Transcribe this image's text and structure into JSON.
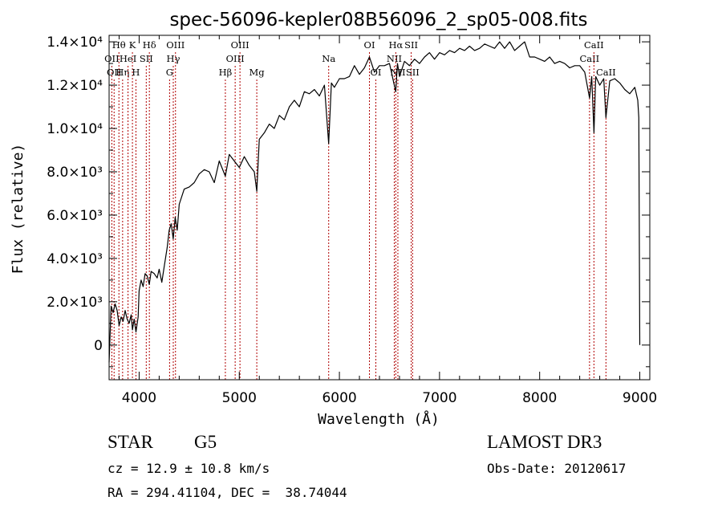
{
  "chart_data": {
    "type": "line",
    "title": "spec-56096-kepler08B56096_2_sp05-008.fits",
    "xlabel": "Wavelength (Å)",
    "ylabel": "Flux (relative)",
    "xlim": [
      3700,
      9100
    ],
    "ylim": [
      -1600,
      14300
    ],
    "xticks": [
      {
        "value": 4000,
        "label": "4000"
      },
      {
        "value": 5000,
        "label": "5000"
      },
      {
        "value": 6000,
        "label": "6000"
      },
      {
        "value": 7000,
        "label": "7000"
      },
      {
        "value": 8000,
        "label": "8000"
      },
      {
        "value": 9000,
        "label": "9000"
      }
    ],
    "yticks": [
      {
        "value": 0,
        "label": "0"
      },
      {
        "value": 2000,
        "label": "2.0×10³"
      },
      {
        "value": 4000,
        "label": "4.0×10³"
      },
      {
        "value": 6000,
        "label": "6.0×10³"
      },
      {
        "value": 8000,
        "label": "8.0×10³"
      },
      {
        "value": 10000,
        "label": "1.0×10⁴"
      },
      {
        "value": 12000,
        "label": "1.2×10⁴"
      },
      {
        "value": 14000,
        "label": "1.4×10⁴"
      }
    ],
    "series": [
      {
        "name": "spectrum",
        "x": [
          3700,
          3720,
          3740,
          3760,
          3780,
          3800,
          3820,
          3840,
          3860,
          3880,
          3900,
          3920,
          3933,
          3950,
          3968,
          3990,
          4000,
          4020,
          4040,
          4060,
          4080,
          4101,
          4120,
          4150,
          4180,
          4200,
          4226,
          4250,
          4280,
          4300,
          4320,
          4340,
          4360,
          4380,
          4400,
          4450,
          4500,
          4550,
          4600,
          4650,
          4700,
          4750,
          4800,
          4861,
          4900,
          4950,
          5000,
          5050,
          5100,
          5150,
          5175,
          5200,
          5250,
          5300,
          5350,
          5400,
          5450,
          5500,
          5550,
          5600,
          5650,
          5700,
          5750,
          5800,
          5850,
          5893,
          5920,
          5950,
          6000,
          6050,
          6100,
          6150,
          6200,
          6250,
          6300,
          6350,
          6400,
          6450,
          6500,
          6563,
          6580,
          6600,
          6650,
          6700,
          6750,
          6800,
          6850,
          6900,
          6950,
          7000,
          7050,
          7100,
          7150,
          7200,
          7250,
          7300,
          7350,
          7400,
          7450,
          7500,
          7550,
          7600,
          7650,
          7700,
          7750,
          7800,
          7850,
          7900,
          7950,
          8000,
          8050,
          8100,
          8150,
          8200,
          8250,
          8300,
          8350,
          8400,
          8450,
          8498,
          8520,
          8542,
          8560,
          8600,
          8640,
          8662,
          8700,
          8750,
          8800,
          8850,
          8900,
          8950,
          8980,
          8990,
          9000
        ],
        "y": [
          -800,
          1800,
          1500,
          1900,
          1600,
          900,
          1300,
          1100,
          1600,
          1200,
          1000,
          1400,
          700,
          1200,
          600,
          1300,
          2500,
          3000,
          2700,
          3300,
          3200,
          2800,
          3400,
          3300,
          3100,
          3500,
          2900,
          3600,
          4500,
          5300,
          5600,
          4900,
          5900,
          5300,
          6500,
          7200,
          7300,
          7500,
          7900,
          8100,
          8000,
          7500,
          8500,
          7800,
          8800,
          8500,
          8200,
          8700,
          8300,
          8000,
          7100,
          9500,
          9800,
          10200,
          10000,
          10600,
          10400,
          11000,
          11300,
          11000,
          11700,
          11600,
          11800,
          11500,
          12000,
          9300,
          12100,
          11900,
          12300,
          12300,
          12400,
          12900,
          12500,
          12800,
          13300,
          12600,
          12900,
          12900,
          13000,
          11700,
          13000,
          12400,
          13100,
          12900,
          13200,
          13000,
          13300,
          13500,
          13200,
          13500,
          13400,
          13600,
          13500,
          13700,
          13600,
          13800,
          13600,
          13700,
          13900,
          13800,
          13700,
          14000,
          13700,
          14000,
          13600,
          13800,
          14000,
          13300,
          13300,
          13200,
          13100,
          13300,
          13000,
          13100,
          13000,
          12800,
          12900,
          12900,
          12600,
          11400,
          12400,
          9800,
          12400,
          12000,
          12300,
          10500,
          12200,
          12300,
          12100,
          11800,
          11600,
          11900,
          11300,
          10500,
          0
        ]
      }
    ],
    "line_markers": [
      {
        "wl": 3727,
        "name": "OII",
        "row": 2
      },
      {
        "wl": 3750,
        "name": "OII",
        "row": 3
      },
      {
        "wl": 3798,
        "name": "Hθ",
        "row": 1
      },
      {
        "wl": 3835,
        "name": "Hη",
        "row": 3
      },
      {
        "wl": 3889,
        "name": "HeI",
        "row": 2
      },
      {
        "wl": 3933,
        "name": "K",
        "row": 1
      },
      {
        "wl": 3968,
        "name": "H",
        "row": 3
      },
      {
        "wl": 4071,
        "name": "SII",
        "row": 2
      },
      {
        "wl": 4102,
        "name": "Hδ",
        "row": 1
      },
      {
        "wl": 4304,
        "name": "G",
        "row": 3
      },
      {
        "wl": 4341,
        "name": "Hγ",
        "row": 2
      },
      {
        "wl": 4363,
        "name": "OIII",
        "row": 1
      },
      {
        "wl": 4861,
        "name": "Hβ",
        "row": 3
      },
      {
        "wl": 4959,
        "name": "OIII",
        "row": 2
      },
      {
        "wl": 5007,
        "name": "OIII",
        "row": 1
      },
      {
        "wl": 5175,
        "name": "Mg",
        "row": 3
      },
      {
        "wl": 5893,
        "name": "Na",
        "row": 2
      },
      {
        "wl": 6300,
        "name": "OI",
        "row": 1
      },
      {
        "wl": 6364,
        "name": "OI",
        "row": 3
      },
      {
        "wl": 6548,
        "name": "NII",
        "row": 2
      },
      {
        "wl": 6563,
        "name": "Hα",
        "row": 1
      },
      {
        "wl": 6584,
        "name": "NII",
        "row": 3
      },
      {
        "wl": 6717,
        "name": "SII",
        "row": 1
      },
      {
        "wl": 6731,
        "name": "SII",
        "row": 3
      },
      {
        "wl": 8498,
        "name": "CaII",
        "row": 2
      },
      {
        "wl": 8542,
        "name": "CaII",
        "row": 1
      },
      {
        "wl": 8662,
        "name": "CaII",
        "row": 3
      }
    ]
  },
  "info": {
    "class": "STAR",
    "subclass": "G5",
    "survey": "LAMOST DR3",
    "redshift": "cz = 12.9 ± 10.8 km/s",
    "obs_date": "Obs-Date: 20120617",
    "coords": "RA = 294.41104, DEC =  38.74044"
  }
}
